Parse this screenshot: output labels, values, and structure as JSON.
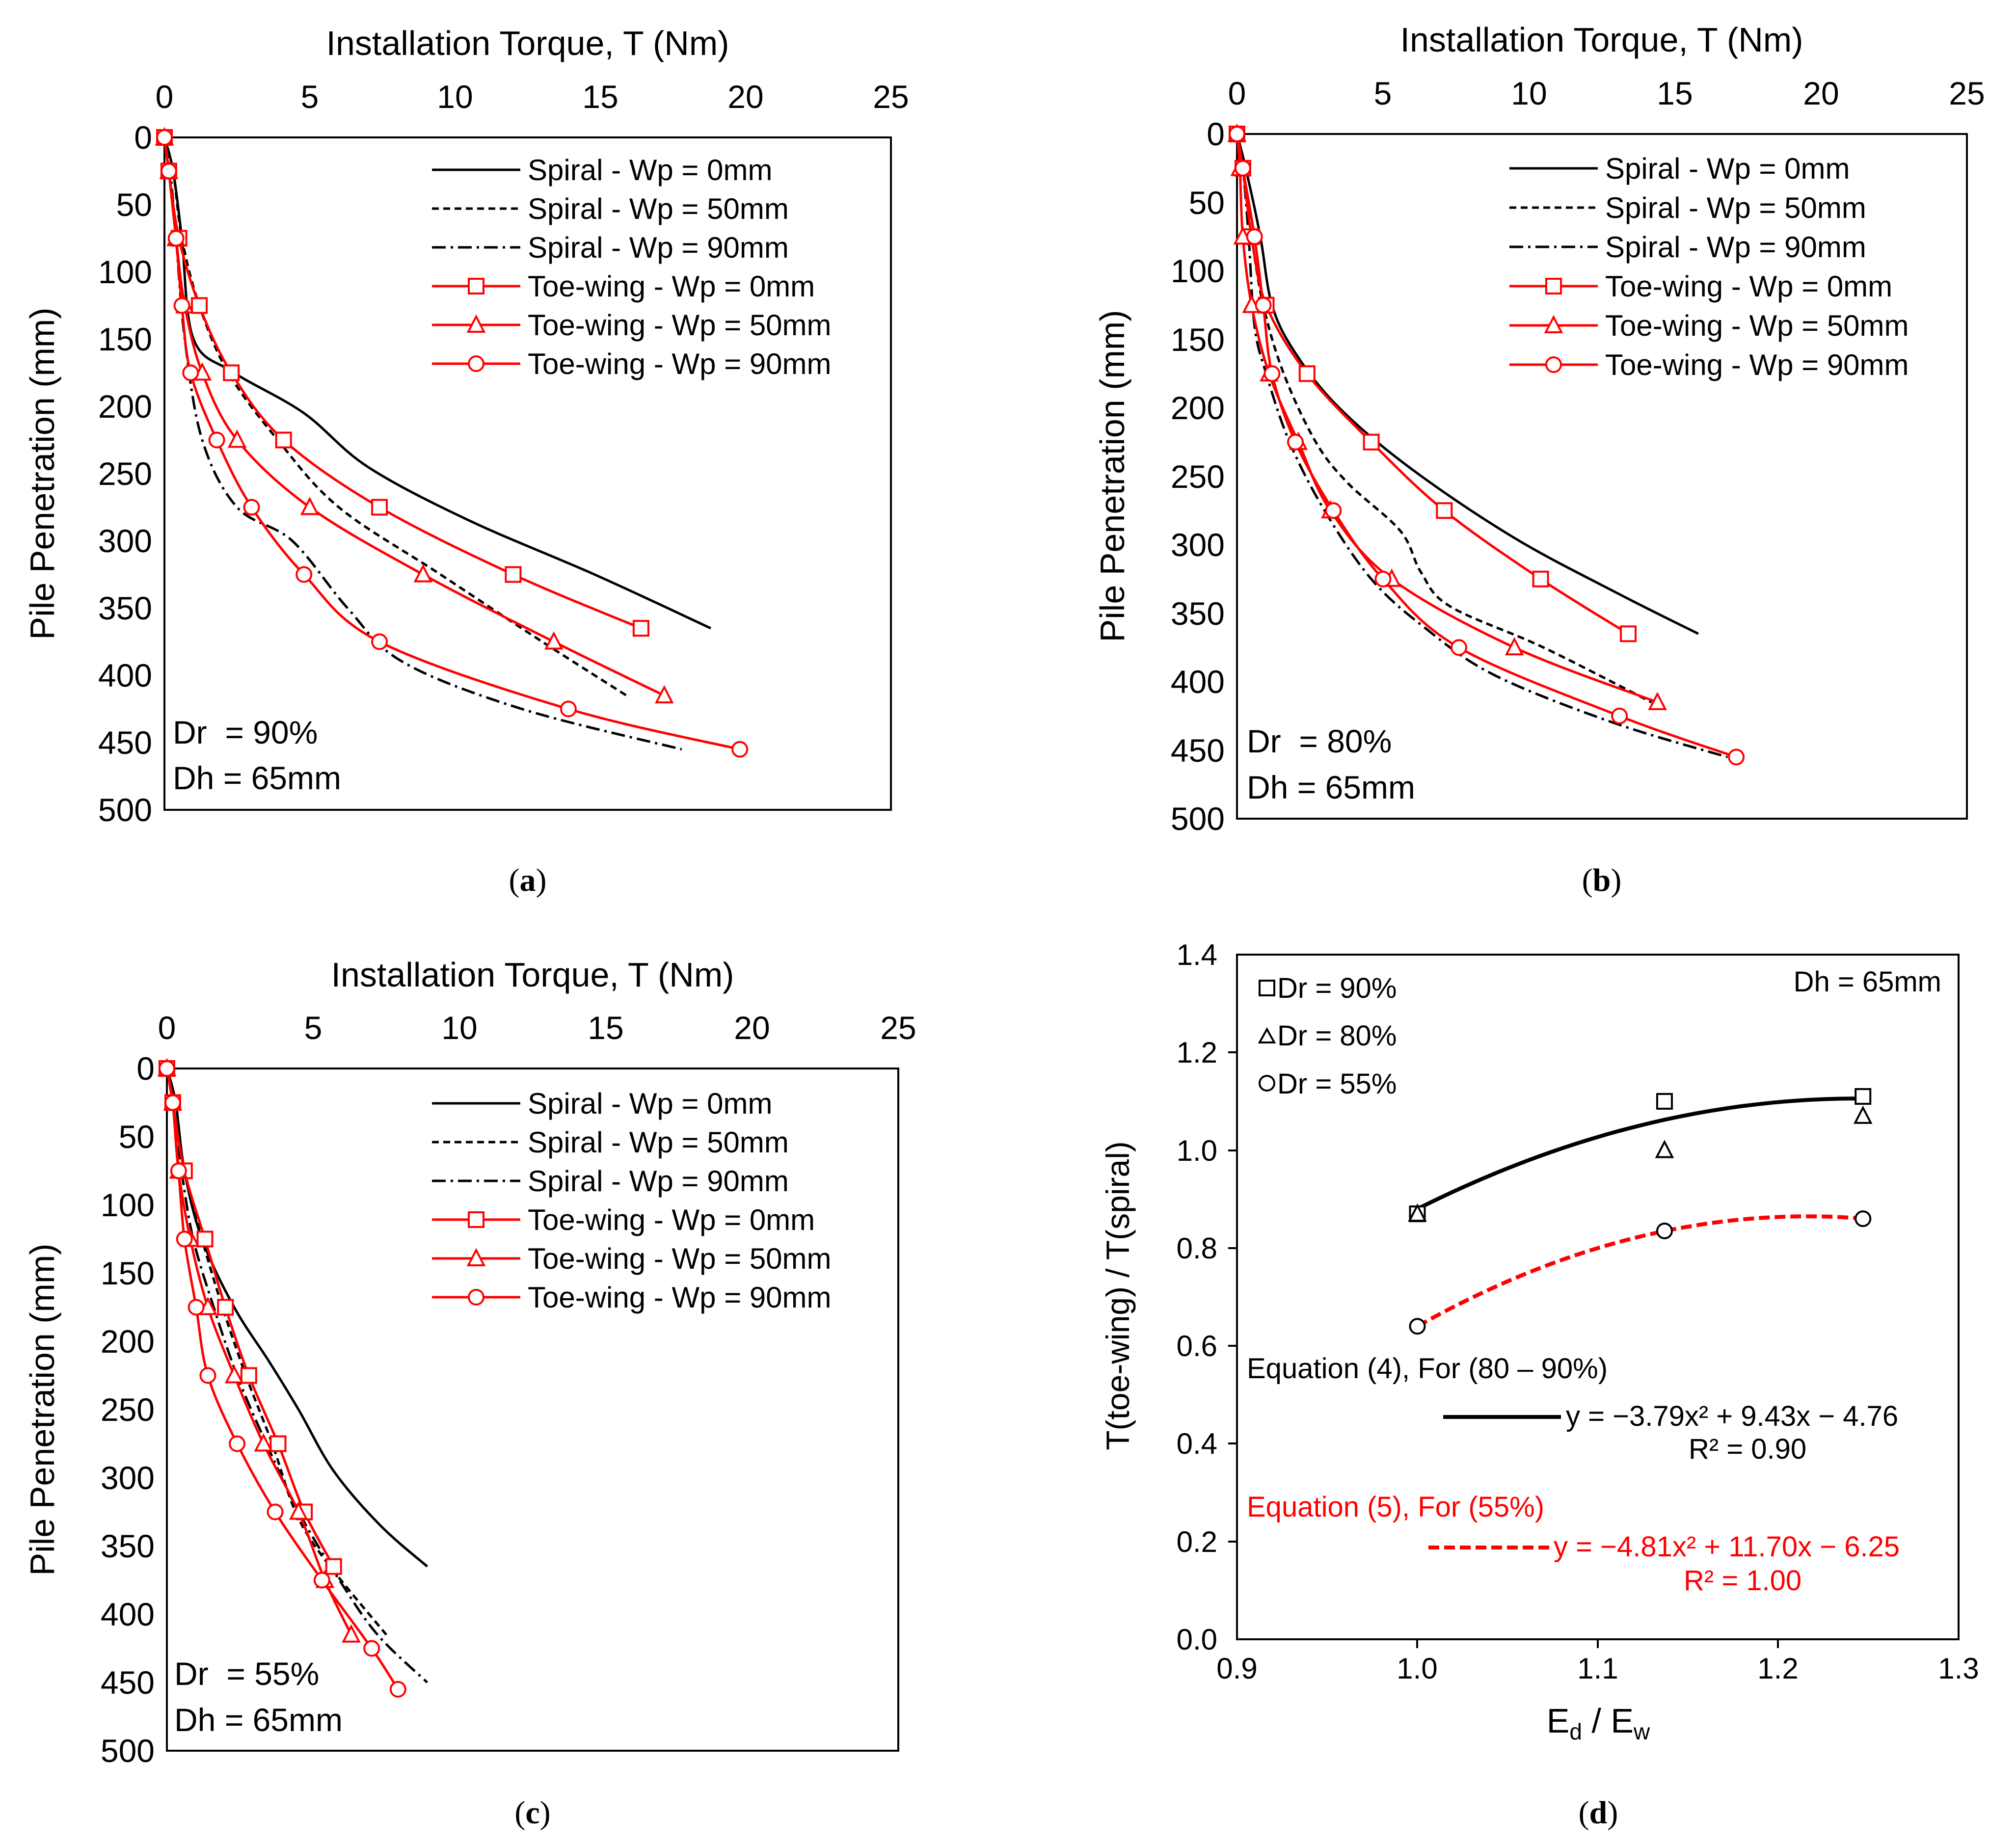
{
  "colors": {
    "spiral": "#000000",
    "toewing": "#ff0000",
    "axis": "#000000"
  },
  "panels": [
    {
      "id": "a",
      "caption": "a",
      "x_label": "Installation Torque, T (Nm)",
      "y_label": "Pile Penetration (mm)",
      "xlim": [
        0,
        25
      ],
      "ylim": [
        0,
        500
      ],
      "x_ticks": [
        "0",
        "5",
        "10",
        "15",
        "20",
        "25"
      ],
      "y_ticks": [
        "0",
        "50",
        "100",
        "150",
        "200",
        "250",
        "300",
        "350",
        "400",
        "450",
        "500"
      ],
      "annotation": [
        "Dr  = 90%",
        "Dh = 65mm"
      ],
      "legend": [
        "Spiral - Wp = 0mm",
        "Spiral - Wp = 50mm",
        "Spiral - Wp = 90mm",
        "Toe-wing - Wp = 0mm",
        "Toe-wing - Wp = 50mm",
        "Toe-wing - Wp = 90mm"
      ],
      "series": [
        {
          "name": "Spiral - Wp = 0mm",
          "dash": "solid",
          "x": [
            0,
            0.3,
            0.6,
            1.0,
            2.4,
            4.8,
            7.0,
            10.5,
            14.8,
            18.8
          ],
          "y": [
            0,
            25,
            75,
            150,
            175,
            205,
            245,
            285,
            325,
            365
          ]
        },
        {
          "name": "Spiral - Wp = 50mm",
          "dash": "dash",
          "x": [
            0,
            0.3,
            0.6,
            1.2,
            2.2,
            3.9,
            6.0,
            9.5,
            13.0,
            15.9
          ],
          "y": [
            0,
            25,
            75,
            125,
            175,
            225,
            275,
            325,
            375,
            415
          ]
        },
        {
          "name": "Spiral - Wp = 90mm",
          "dash": "dashdot",
          "x": [
            0,
            0.2,
            0.4,
            0.7,
            1.3,
            2.5,
            4.4,
            6.3,
            8.2,
            12.3,
            17.8
          ],
          "y": [
            0,
            25,
            75,
            150,
            225,
            275,
            300,
            350,
            390,
            425,
            455
          ]
        },
        {
          "name": "Toe-wing - Wp = 0mm",
          "marker": "square",
          "x": [
            0,
            0.15,
            0.5,
            1.2,
            2.3,
            4.1,
            7.4,
            12.0,
            16.4
          ],
          "y": [
            0,
            25,
            75,
            125,
            175,
            225,
            275,
            325,
            365
          ]
        },
        {
          "name": "Toe-wing - Wp = 50mm",
          "marker": "triangle",
          "x": [
            0,
            0.15,
            0.4,
            0.7,
            1.3,
            2.5,
            5.0,
            8.9,
            13.4,
            17.2
          ],
          "y": [
            0,
            25,
            75,
            125,
            175,
            225,
            275,
            325,
            375,
            415
          ]
        },
        {
          "name": "Toe-wing - Wp = 90mm",
          "marker": "circle",
          "x": [
            0,
            0.15,
            0.4,
            0.6,
            0.9,
            1.8,
            3.0,
            4.8,
            7.4,
            13.9,
            19.8
          ],
          "y": [
            0,
            25,
            75,
            125,
            175,
            225,
            275,
            325,
            375,
            425,
            455
          ]
        }
      ]
    },
    {
      "id": "b",
      "caption": "b",
      "x_label": "Installation Torque, T (Nm)",
      "y_label": "Pile Penetration (mm)",
      "xlim": [
        0,
        25
      ],
      "ylim": [
        0,
        500
      ],
      "x_ticks": [
        "0",
        "5",
        "10",
        "15",
        "20",
        "25"
      ],
      "y_ticks": [
        "0",
        "50",
        "100",
        "150",
        "200",
        "250",
        "300",
        "350",
        "400",
        "450",
        "500"
      ],
      "annotation": [
        "Dr  = 80%",
        "Dh = 65mm"
      ],
      "legend": [
        "Spiral - Wp = 0mm",
        "Spiral - Wp = 50mm",
        "Spiral - Wp = 90mm",
        "Toe-wing - Wp = 0mm",
        "Toe-wing - Wp = 50mm",
        "Toe-wing - Wp = 90mm"
      ],
      "series": [
        {
          "name": "Spiral - Wp = 0mm",
          "dash": "solid",
          "x": [
            0,
            0.3,
            0.8,
            1.2,
            2.0,
            3.5,
            6.0,
            9.5,
            13.0,
            15.8
          ],
          "y": [
            0,
            25,
            75,
            125,
            160,
            200,
            245,
            295,
            335,
            365
          ]
        },
        {
          "name": "Spiral - Wp = 50mm",
          "dash": "dash",
          "x": [
            0,
            0.2,
            0.5,
            0.9,
            1.6,
            2.7,
            3.8,
            5.6,
            6.3,
            7.3,
            10.5,
            14.2
          ],
          "y": [
            0,
            25,
            75,
            125,
            175,
            225,
            255,
            290,
            320,
            345,
            375,
            415
          ]
        },
        {
          "name": "Spiral - Wp = 90mm",
          "dash": "dashdot",
          "x": [
            0,
            0.2,
            0.4,
            0.6,
            1.0,
            1.8,
            3.0,
            4.6,
            6.4,
            8.8,
            12.9,
            16.8
          ],
          "y": [
            0,
            25,
            75,
            140,
            175,
            225,
            275,
            325,
            360,
            395,
            430,
            455
          ]
        },
        {
          "name": "Toe-wing - Wp = 0mm",
          "marker": "square",
          "x": [
            0,
            0.2,
            0.5,
            1.0,
            2.4,
            4.6,
            7.1,
            10.4,
            13.4
          ],
          "y": [
            0,
            25,
            75,
            125,
            175,
            225,
            275,
            325,
            365
          ]
        },
        {
          "name": "Toe-wing - Wp = 50mm",
          "marker": "triangle",
          "x": [
            0,
            0.1,
            0.2,
            0.5,
            1.1,
            2.1,
            3.2,
            5.3,
            9.5,
            14.4
          ],
          "y": [
            0,
            25,
            75,
            125,
            175,
            225,
            275,
            325,
            375,
            415
          ]
        },
        {
          "name": "Toe-wing - Wp = 90mm",
          "marker": "circle",
          "x": [
            0,
            0.2,
            0.6,
            0.9,
            1.2,
            2.0,
            3.3,
            5.0,
            7.6,
            13.1,
            17.1
          ],
          "y": [
            0,
            25,
            75,
            125,
            175,
            225,
            275,
            325,
            375,
            425,
            455
          ]
        }
      ]
    },
    {
      "id": "c",
      "caption": "c",
      "x_label": "Installation Torque, T (Nm)",
      "y_label": "Pile Penetration (mm)",
      "xlim": [
        0,
        25
      ],
      "ylim": [
        0,
        500
      ],
      "x_ticks": [
        "0",
        "5",
        "10",
        "15",
        "20",
        "25"
      ],
      "y_ticks": [
        "0",
        "50",
        "100",
        "150",
        "200",
        "250",
        "300",
        "350",
        "400",
        "450",
        "500"
      ],
      "annotation": [
        "Dr  = 55%",
        "Dh = 65mm"
      ],
      "legend": [
        "Spiral - Wp = 0mm",
        "Spiral - Wp = 50mm",
        "Spiral - Wp = 90mm",
        "Toe-wing - Wp = 0mm",
        "Toe-wing - Wp = 50mm",
        "Toe-wing - Wp = 90mm"
      ],
      "series": [
        {
          "name": "Spiral - Wp = 0mm",
          "dash": "solid",
          "x": [
            0,
            0.3,
            0.6,
            1.2,
            2.3,
            3.5,
            4.5,
            5.7,
            7.3,
            8.9
          ],
          "y": [
            0,
            25,
            75,
            125,
            175,
            215,
            250,
            295,
            335,
            365
          ]
        },
        {
          "name": "Spiral - Wp = 50mm",
          "dash": "dash",
          "x": [
            0,
            0.3,
            0.6,
            1.2,
            1.9,
            2.7,
            3.6,
            4.4,
            5.4,
            7.5
          ],
          "y": [
            0,
            25,
            75,
            125,
            175,
            225,
            275,
            325,
            360,
            415
          ]
        },
        {
          "name": "Spiral - Wp = 90mm",
          "dash": "dashdot",
          "x": [
            0,
            0.2,
            0.5,
            0.9,
            1.6,
            2.4,
            3.4,
            4.5,
            5.9,
            7.2,
            8.9
          ],
          "y": [
            0,
            25,
            75,
            125,
            175,
            225,
            275,
            325,
            375,
            415,
            450
          ]
        },
        {
          "name": "Toe-wing - Wp = 0mm",
          "marker": "square",
          "x": [
            0,
            0.2,
            0.6,
            1.3,
            2.0,
            2.8,
            3.8,
            4.7,
            5.7
          ],
          "y": [
            0,
            25,
            75,
            125,
            175,
            225,
            275,
            325,
            365
          ]
        },
        {
          "name": "Toe-wing - Wp = 50mm",
          "marker": "triangle",
          "x": [
            0,
            0.2,
            0.4,
            0.8,
            1.4,
            2.3,
            3.3,
            4.5,
            5.4,
            6.3
          ],
          "y": [
            0,
            25,
            75,
            125,
            175,
            225,
            275,
            325,
            375,
            415
          ]
        },
        {
          "name": "Toe-wing - Wp = 90mm",
          "marker": "circle",
          "x": [
            0,
            0.2,
            0.4,
            0.6,
            1.0,
            1.4,
            2.4,
            3.7,
            5.3,
            7.0,
            7.9
          ],
          "y": [
            0,
            25,
            75,
            125,
            175,
            225,
            275,
            325,
            375,
            425,
            455
          ]
        }
      ]
    }
  ],
  "panel_d": {
    "caption": "d",
    "x_label_main": "E",
    "x_label_sub1": "d",
    "x_label_mid": " / E",
    "x_label_sub2": "w",
    "y_label": "T(toe-wing) / T(spiral)",
    "xlim": [
      0.9,
      1.3
    ],
    "ylim": [
      0,
      1.4
    ],
    "x_ticks": [
      "0.9",
      "1.0",
      "1.1",
      "1.2",
      "1.3"
    ],
    "y_ticks": [
      "0.0",
      "0.2",
      "0.4",
      "0.6",
      "0.8",
      "1.0",
      "1.2",
      "1.4"
    ],
    "legend": [
      "Dr = 90%",
      "Dr = 80%",
      "Dr = 55%"
    ],
    "note": "Dh = 65mm",
    "eq4_title": "Equation (4), For (80 – 90%)",
    "eq4_formula": "y = −3.79x² + 9.43x − 4.76",
    "eq4_r2": "R² = 0.90",
    "eq5_title": "Equation (5), For (55%)",
    "eq5_formula": "y = −4.81x² + 11.70x − 6.25",
    "eq5_r2": "R² = 1.00",
    "points": [
      {
        "name": "Dr = 90%",
        "marker": "square",
        "x": [
          1.0,
          1.137,
          1.247
        ],
        "y": [
          0.87,
          1.1,
          1.11
        ]
      },
      {
        "name": "Dr = 80%",
        "marker": "triangle",
        "x": [
          1.0,
          1.137,
          1.247
        ],
        "y": [
          0.87,
          1.0,
          1.07
        ]
      },
      {
        "name": "Dr = 55%",
        "marker": "circle",
        "x": [
          1.0,
          1.137,
          1.247
        ],
        "y": [
          0.64,
          0.835,
          0.86
        ]
      }
    ],
    "fits": [
      {
        "name": "Equation (4)",
        "coeffs": [
          -3.79,
          9.43,
          -4.76
        ],
        "xrange": [
          1.0,
          1.247
        ],
        "color": "#000000",
        "dash": "solid"
      },
      {
        "name": "Equation (5)",
        "coeffs": [
          -4.81,
          11.7,
          -6.25
        ],
        "xrange": [
          1.0,
          1.247
        ],
        "color": "#ff0000",
        "dash": "dash"
      }
    ]
  }
}
